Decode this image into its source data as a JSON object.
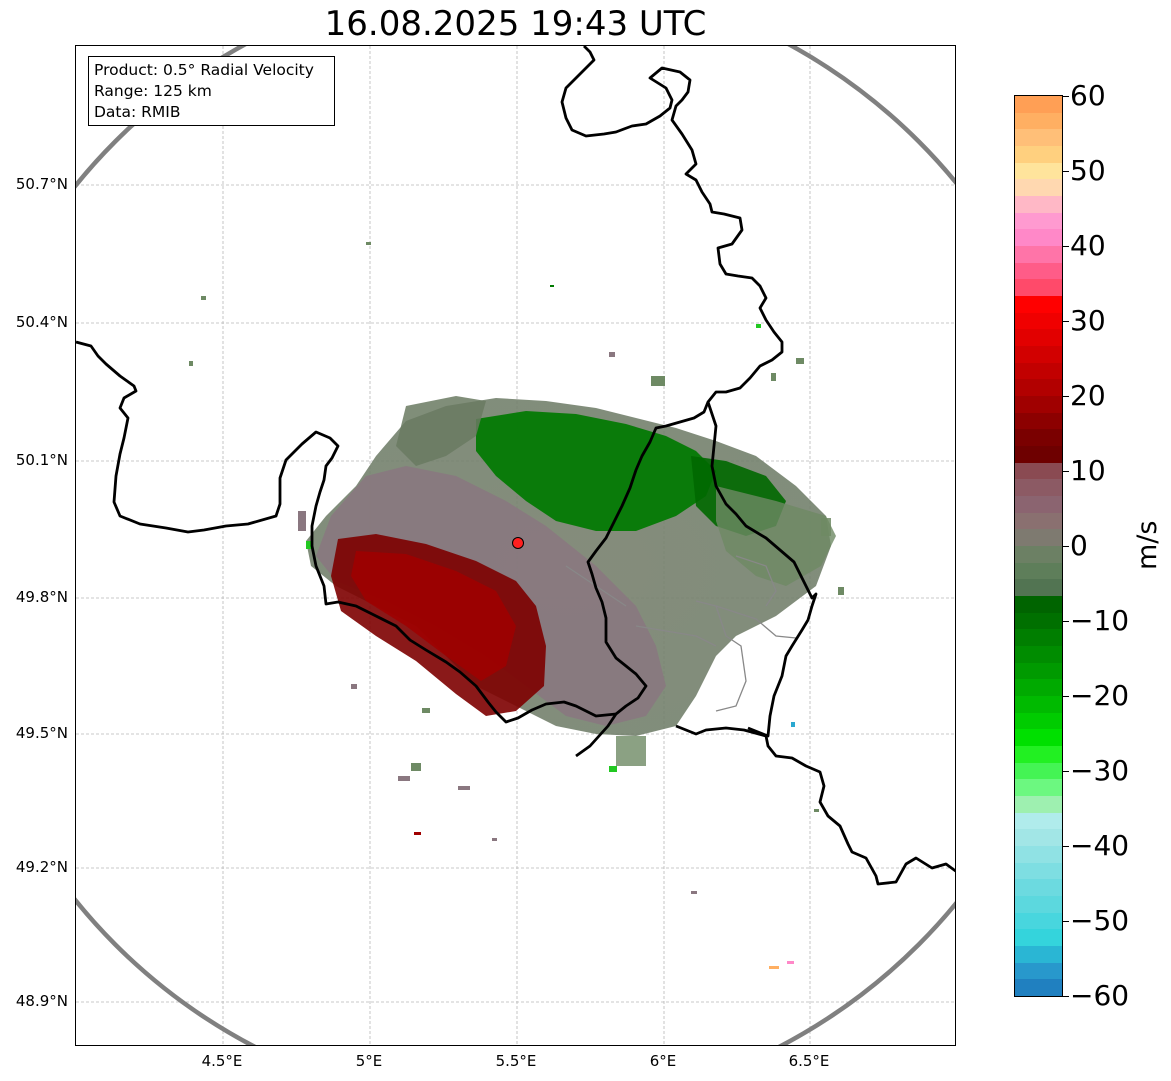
{
  "title": "16.08.2025 19:43 UTC",
  "info_box": {
    "product": "Product: 0.5° Radial Velocity",
    "range": "Range: 125 km",
    "source": "Data: RMIB"
  },
  "axes": {
    "latitude_labels": [
      "50.7°N",
      "50.4°N",
      "50.1°N",
      "49.8°N",
      "49.5°N",
      "49.2°N",
      "48.9°N"
    ],
    "longitude_labels": [
      "4.5°E",
      "5°E",
      "5.5°E",
      "6°E",
      "6.5°E"
    ]
  },
  "colorbar": {
    "label": "m/s",
    "ticks": [
      "60",
      "50",
      "40",
      "30",
      "20",
      "10",
      "0",
      "−10",
      "−20",
      "−30",
      "−40",
      "−50",
      "−60"
    ],
    "range": [
      -60,
      60
    ],
    "colors_top_to_bottom": [
      "#ff9f55",
      "#ffaf62",
      "#ffbf78",
      "#ffd07f",
      "#ffe49c",
      "#ffd8b0",
      "#ffb8c6",
      "#ff9ad0",
      "#ff88c8",
      "#ff74a8",
      "#ff5c88",
      "#ff4a6a",
      "#ff0000",
      "#f00000",
      "#e20000",
      "#d20000",
      "#c20000",
      "#b20000",
      "#a00000",
      "#8c0000",
      "#7a0000",
      "#6e0000",
      "#8a4a52",
      "#8c5a64",
      "#8b6470",
      "#8a7070",
      "#7e7a70",
      "#6c8064",
      "#5e7e5a",
      "#527452",
      "#006400",
      "#007000",
      "#007e00",
      "#008c00",
      "#009a00",
      "#00aa00",
      "#00ba00",
      "#00cc00",
      "#00e000",
      "#22f022",
      "#44f454",
      "#6cf880",
      "#9ef0b0",
      "#b0ecec",
      "#a2e6e6",
      "#90e2e4",
      "#7edee2",
      "#6cdae0",
      "#5cd8de",
      "#48d6de",
      "#34d4dc",
      "#2ab6d4",
      "#2898cc",
      "#2080c0"
    ]
  },
  "radar_site": {
    "lat": 49.914,
    "lon": 5.505,
    "color": "#ff2020"
  }
}
